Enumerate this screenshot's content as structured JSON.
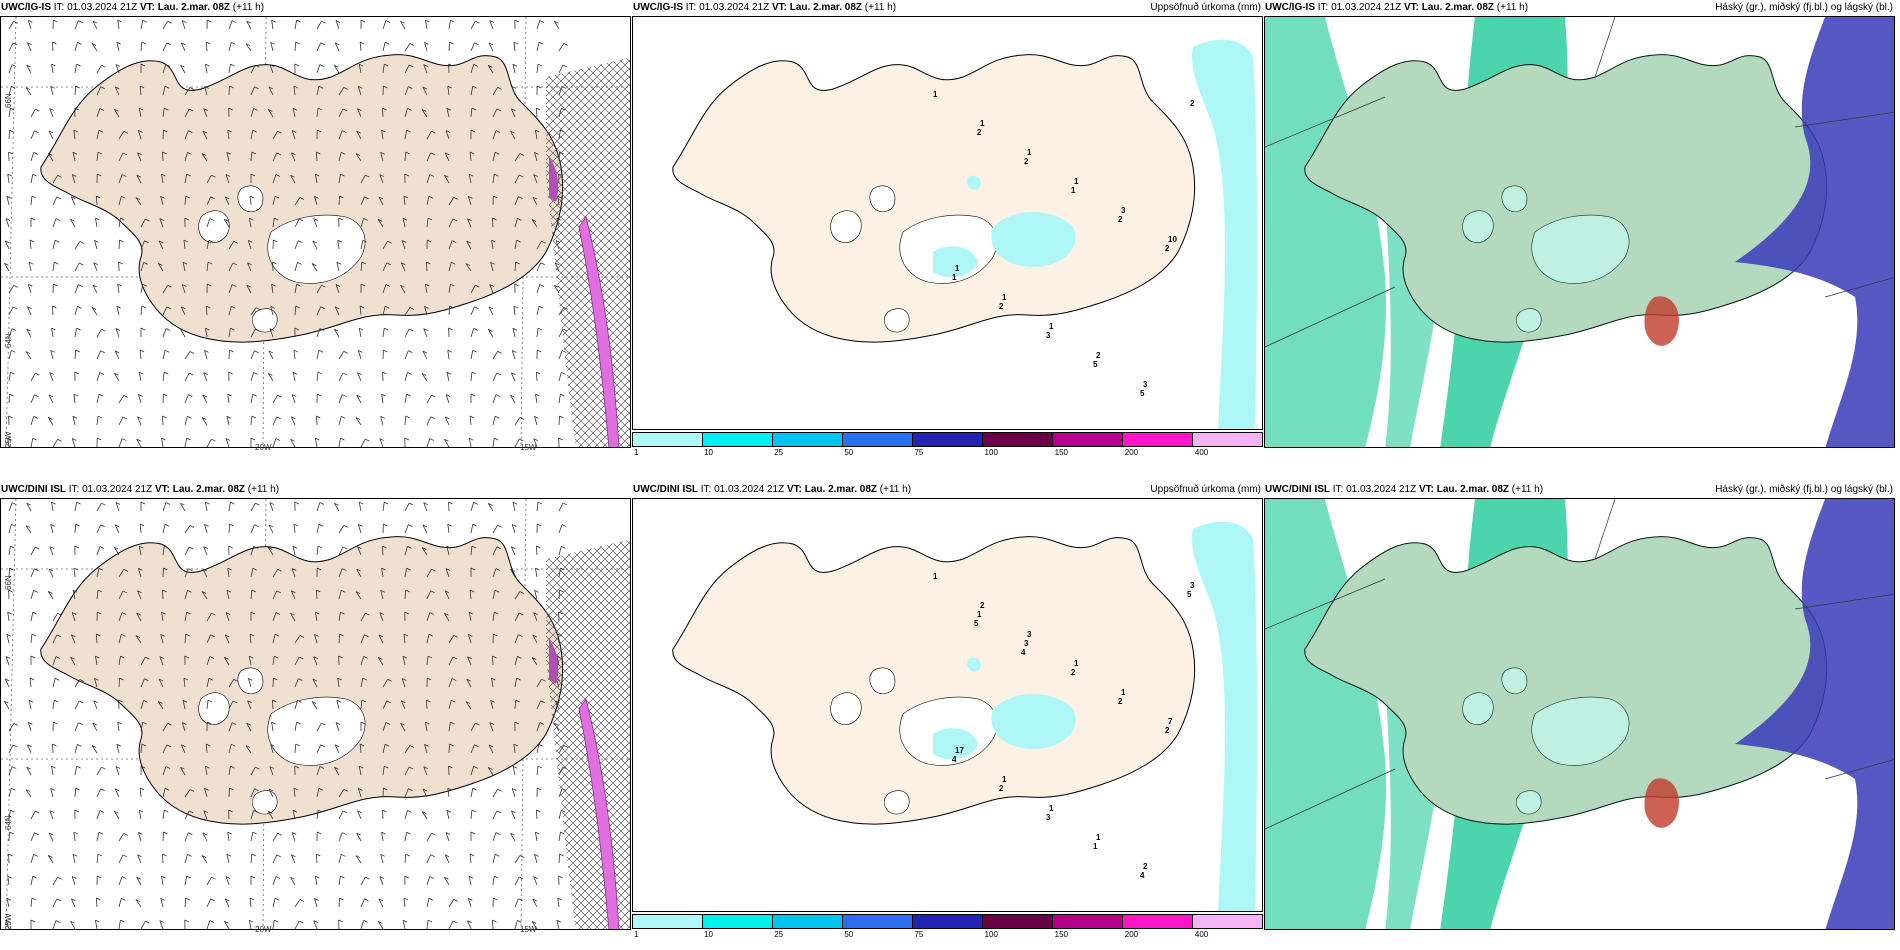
{
  "rows": [
    {
      "model": "UWC/IG-IS",
      "panels": [
        {
          "type": "wind",
          "model": "UWC/IG-IS",
          "it_label": "IT:",
          "it": "01.03.2024 21Z",
          "vt_label": "VT:",
          "vt": "Lau. 2.mar. 08Z",
          "lead": "(+11 h)"
        },
        {
          "type": "precip",
          "model": "UWC/IG-IS",
          "it_label": "IT:",
          "it": "01.03.2024 21Z",
          "vt_label": "VT:",
          "vt": "Lau. 2.mar. 08Z",
          "lead": "(+11 h)",
          "right": "Uppsöfnuð úrkoma (mm)"
        },
        {
          "type": "cloud",
          "model": "UWC/IG-IS",
          "it_label": "IT:",
          "it": "01.03.2024 21Z",
          "vt_label": "VT:",
          "vt": "Lau. 2.mar. 08Z",
          "lead": "(+11 h)",
          "right": "Háský (gr.), miðský (fj.bl.) og lágský (bl.)"
        }
      ]
    },
    {
      "model": "UWC/DINI ISL",
      "panels": [
        {
          "type": "wind",
          "model": "UWC/DINI ISL",
          "it_label": "IT:",
          "it": "01.03.2024 21Z",
          "vt_label": "VT:",
          "vt": "Lau. 2.mar. 08Z",
          "lead": "(+11 h)"
        },
        {
          "type": "precip",
          "model": "UWC/DINI ISL",
          "it_label": "IT:",
          "it": "01.03.2024 21Z",
          "vt_label": "VT:",
          "vt": "Lau. 2.mar. 08Z",
          "lead": "(+11 h)",
          "right": "Uppsöfnuð úrkoma (mm)"
        },
        {
          "type": "cloud",
          "model": "UWC/DINI ISL",
          "it_label": "IT:",
          "it": "01.03.2024 21Z",
          "vt_label": "VT:",
          "vt": "Lau. 2.mar. 08Z",
          "lead": "(+11 h)",
          "right": "Háský (gr.), miðský (fj.bl.) og lágský (bl.)"
        }
      ]
    }
  ],
  "axis_labels": {
    "lat66": "66N",
    "lat64": "64N",
    "lon25": "25W",
    "lon20": "20W",
    "lon15": "15W"
  },
  "colorbar": {
    "ticks": [
      "1",
      "10",
      "25",
      "50",
      "75",
      "100",
      "150",
      "200",
      "400"
    ],
    "colors": [
      "#aff7f7",
      "#00f0f0",
      "#00c5f0",
      "#2c6ef0",
      "#2424b4",
      "#6a0046",
      "#b4008c",
      "#ff14c8",
      "#f5b4f5"
    ]
  },
  "precip_labels": [
    [
      "1",
      "1",
      "1",
      "1",
      "3",
      "10",
      "1",
      "1",
      "1",
      "2",
      "3",
      "2",
      "2",
      "2",
      "1",
      "2",
      "2",
      "1",
      "2",
      "3",
      "5",
      "5"
    ],
    [
      "1",
      "2",
      "3",
      "1",
      "1",
      "7",
      "17",
      "1",
      "1",
      "1",
      "2",
      "3",
      "1",
      "3",
      "2",
      "2",
      "2",
      "4",
      "2",
      "3",
      "1",
      "4",
      "5",
      "5",
      "4"
    ]
  ],
  "colors": {
    "land": "#f0e0d0",
    "sea": "#ffffff",
    "precip_light": "#aff7f7",
    "cloud_high": "#00c389",
    "cloud_mid": "#3a3ab8",
    "cloud_low": "#c0392b"
  }
}
